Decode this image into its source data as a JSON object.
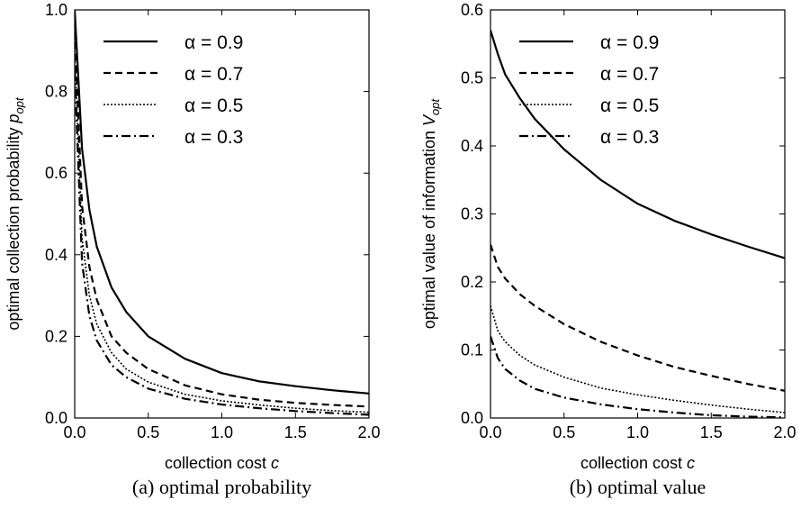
{
  "chart_data": [
    {
      "type": "line",
      "caption": "(a) optimal probability",
      "xlabel": "collection cost",
      "xlabel_var": "c",
      "ylabel": "optimal collection probability",
      "ylabel_var": "p",
      "ylabel_sub": "opt",
      "xlim": [
        0,
        2
      ],
      "ylim": [
        0,
        1
      ],
      "xticks": [
        "0.0",
        "0.5",
        "1.0",
        "1.5",
        "2.0"
      ],
      "yticks": [
        "0.0",
        "0.2",
        "0.4",
        "0.6",
        "0.8",
        "1.0"
      ],
      "legend_position": "top-right",
      "series": [
        {
          "name": "α = 0.9",
          "dash": "solid",
          "x": [
            0,
            0.05,
            0.1,
            0.15,
            0.25,
            0.35,
            0.5,
            0.75,
            1.0,
            1.25,
            1.5,
            1.75,
            2.0
          ],
          "y": [
            1.0,
            0.66,
            0.51,
            0.42,
            0.32,
            0.26,
            0.2,
            0.145,
            0.11,
            0.09,
            0.078,
            0.068,
            0.06
          ]
        },
        {
          "name": "α = 0.7",
          "dash": "dashed",
          "x": [
            0,
            0.05,
            0.1,
            0.15,
            0.25,
            0.35,
            0.5,
            0.75,
            1.0,
            1.25,
            1.5,
            1.75,
            2.0
          ],
          "y": [
            0.95,
            0.52,
            0.37,
            0.29,
            0.2,
            0.16,
            0.12,
            0.08,
            0.058,
            0.045,
            0.037,
            0.032,
            0.028
          ]
        },
        {
          "name": "α = 0.5",
          "dash": "dotted",
          "x": [
            0,
            0.05,
            0.1,
            0.15,
            0.25,
            0.35,
            0.5,
            0.75,
            1.0,
            1.25,
            1.5,
            1.75,
            2.0
          ],
          "y": [
            0.9,
            0.44,
            0.3,
            0.23,
            0.16,
            0.12,
            0.088,
            0.058,
            0.042,
            0.032,
            0.024,
            0.018,
            0.014
          ]
        },
        {
          "name": "α = 0.3",
          "dash": "dashdot",
          "x": [
            0,
            0.05,
            0.1,
            0.15,
            0.25,
            0.35,
            0.5,
            0.75,
            1.0,
            1.25,
            1.5,
            1.75,
            2.0
          ],
          "y": [
            0.85,
            0.38,
            0.25,
            0.19,
            0.13,
            0.1,
            0.072,
            0.047,
            0.033,
            0.024,
            0.017,
            0.012,
            0.008
          ]
        }
      ]
    },
    {
      "type": "line",
      "caption": "(b) optimal value",
      "xlabel": "collection cost",
      "xlabel_var": "c",
      "ylabel": "optimal value of information",
      "ylabel_var": "V",
      "ylabel_sub": "opt",
      "xlim": [
        0,
        2
      ],
      "ylim": [
        0,
        0.6
      ],
      "xticks": [
        "0.0",
        "0.5",
        "1.0",
        "1.5",
        "2.0"
      ],
      "yticks": [
        "0.0",
        "0.1",
        "0.2",
        "0.3",
        "0.4",
        "0.5",
        "0.6"
      ],
      "legend_position": "top-right",
      "series": [
        {
          "name": "α = 0.9",
          "dash": "solid",
          "x": [
            0,
            0.05,
            0.1,
            0.2,
            0.3,
            0.5,
            0.75,
            1.0,
            1.25,
            1.5,
            1.75,
            2.0
          ],
          "y": [
            0.57,
            0.535,
            0.505,
            0.47,
            0.44,
            0.395,
            0.35,
            0.315,
            0.29,
            0.27,
            0.252,
            0.235
          ]
        },
        {
          "name": "α = 0.7",
          "dash": "dashed",
          "x": [
            0,
            0.05,
            0.1,
            0.2,
            0.3,
            0.5,
            0.75,
            1.0,
            1.25,
            1.5,
            1.75,
            2.0
          ],
          "y": [
            0.255,
            0.222,
            0.205,
            0.182,
            0.165,
            0.138,
            0.112,
            0.092,
            0.075,
            0.062,
            0.05,
            0.04
          ]
        },
        {
          "name": "α = 0.5",
          "dash": "dotted",
          "x": [
            0,
            0.05,
            0.1,
            0.2,
            0.3,
            0.5,
            0.75,
            1.0,
            1.25,
            1.5,
            1.75,
            2.0
          ],
          "y": [
            0.165,
            0.128,
            0.112,
            0.092,
            0.078,
            0.06,
            0.044,
            0.034,
            0.026,
            0.019,
            0.013,
            0.008
          ]
        },
        {
          "name": "α = 0.3",
          "dash": "dashdot",
          "x": [
            0,
            0.05,
            0.1,
            0.2,
            0.3,
            0.5,
            0.75,
            1.0,
            1.25,
            1.5,
            1.75,
            2.0
          ],
          "y": [
            0.12,
            0.088,
            0.072,
            0.055,
            0.043,
            0.03,
            0.02,
            0.013,
            0.008,
            0.004,
            0.002,
            0.001
          ]
        }
      ]
    }
  ]
}
